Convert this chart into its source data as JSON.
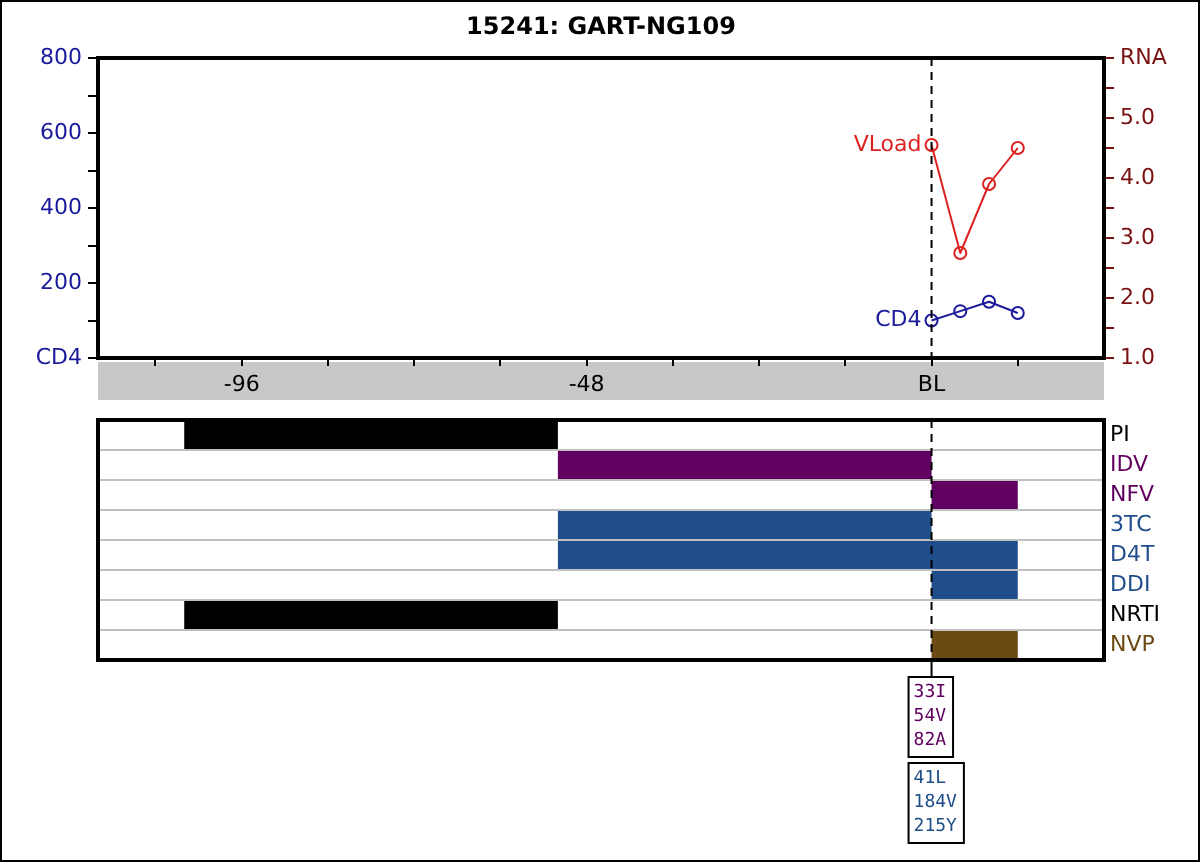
{
  "chart_data": [
    {
      "type": "line",
      "title": "15241: GART-NG109",
      "x": [
        0,
        4,
        8,
        12
      ],
      "series": [
        {
          "name": "CD4",
          "color": "#1a1a9c",
          "values": [
            100,
            125,
            150,
            120
          ]
        },
        {
          "name": "VLoad",
          "color": "#dd2020",
          "axis": "y2",
          "values": [
            4.55,
            2.75,
            3.9,
            4.5
          ]
        }
      ],
      "xlim": [
        -116,
        24
      ],
      "xticks": [
        {
          "value": -108,
          "label": null
        },
        -96,
        {
          "value": -84,
          "label": null
        },
        {
          "value": -72,
          "label": null
        },
        {
          "value": -60,
          "label": null
        },
        -48,
        {
          "value": -36,
          "label": null
        },
        {
          "value": -24,
          "label": null
        },
        {
          "value": -12,
          "label": null
        },
        {
          "value": 0,
          "label": "BL"
        },
        {
          "value": 12,
          "label": null
        }
      ],
      "ylim": [
        0,
        800
      ],
      "yticks": [
        {
          "value": 0,
          "label": "CD4"
        },
        {
          "value": 100,
          "label": null
        },
        200,
        {
          "value": 300,
          "label": null
        },
        400,
        {
          "value": 500,
          "label": null
        },
        600,
        {
          "value": 700,
          "label": null
        },
        800
      ],
      "y2lim": [
        1,
        6
      ],
      "y2ticks": [
        {
          "value": 1,
          "label": "1.0"
        },
        {
          "value": 1.5,
          "label": null
        },
        {
          "value": 2,
          "label": "2.0"
        },
        {
          "value": 2.5,
          "label": null
        },
        {
          "value": 3,
          "label": "3.0"
        },
        {
          "value": 3.5,
          "label": null
        },
        {
          "value": 4,
          "label": "4.0"
        },
        {
          "value": 4.5,
          "label": null
        },
        {
          "value": 5,
          "label": "5.0"
        },
        {
          "value": 5.5,
          "label": null
        },
        {
          "value": 6,
          "label": "RNA"
        }
      ],
      "marker": "circle",
      "grid": false,
      "legend": false,
      "ref_lines": [
        {
          "axis": "x",
          "value": 0,
          "line_style": "dashed"
        }
      ]
    },
    {
      "type": "bar",
      "orientation": "horizontal",
      "categories": [
        "PI",
        "IDV",
        "NFV",
        "3TC",
        "D4T",
        "DDI",
        "NRTI",
        "NVP"
      ],
      "base": [
        -104,
        -52,
        0,
        -52,
        -52,
        0,
        -104,
        0
      ],
      "values": [
        52,
        52,
        12,
        52,
        64,
        12,
        52,
        12
      ],
      "colors": [
        "#000000",
        "#600060",
        "#600060",
        "#1f4e8a",
        "#1f4e8a",
        "#1f4e8a",
        "#000000",
        "#6b4a14"
      ],
      "xlim": [
        -116,
        24
      ],
      "tick_labels": "y",
      "grid": "y",
      "ref_lines": [
        {
          "axis": "x",
          "value": 0,
          "line_style": "dashed"
        }
      ],
      "annotations": [
        "33I\n54V\n82A",
        "41L\n184V\n215Y"
      ]
    }
  ]
}
